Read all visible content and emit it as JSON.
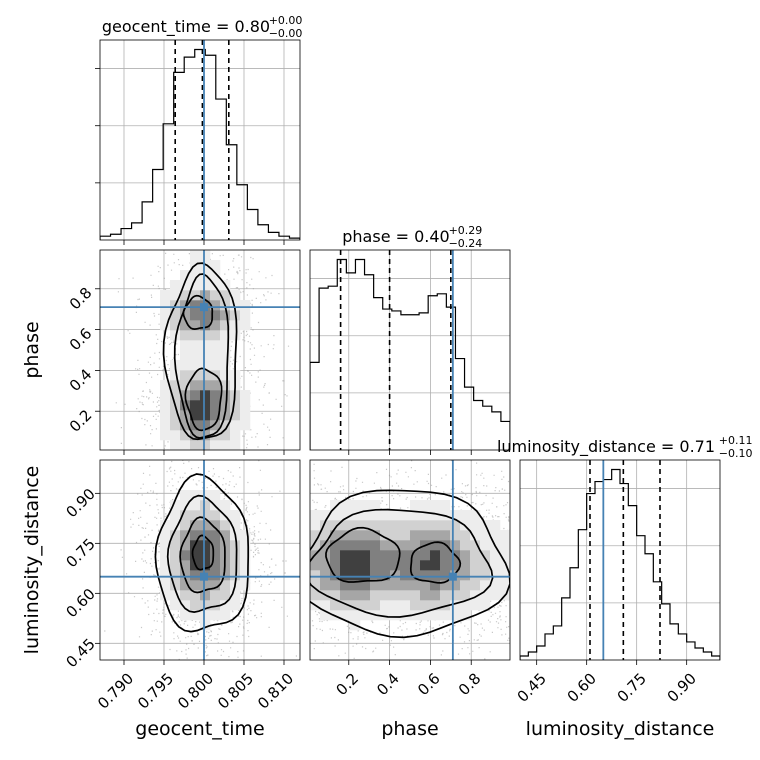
{
  "chart_data": {
    "type": "corner",
    "parameters": [
      {
        "name": "geocent_time",
        "label": "geocent_time",
        "median": "0.80",
        "plus": "+0.00",
        "minus": "−0.00",
        "truth": 0.8,
        "range": [
          0.787,
          0.812
        ],
        "ticks": [
          "0.790",
          "0.795",
          "0.800",
          "0.805",
          "0.810"
        ],
        "tick_values": [
          0.79,
          0.795,
          0.8,
          0.805,
          0.81
        ],
        "quantiles": [
          0.7964,
          0.7998,
          0.8031
        ],
        "hist": [
          0.02,
          0.03,
          0.06,
          0.09,
          0.2,
          0.37,
          0.61,
          0.88,
          0.96,
          1.0,
          0.97,
          0.74,
          0.5,
          0.29,
          0.16,
          0.08,
          0.04,
          0.02,
          0.01
        ]
      },
      {
        "name": "phase",
        "label": "phase",
        "median": "0.40",
        "plus": "+0.29",
        "minus": "−0.24",
        "truth": 0.71,
        "range": [
          0.01,
          0.99
        ],
        "ticks": [
          "0.2",
          "0.4",
          "0.6",
          "0.8"
        ],
        "tick_values": [
          0.2,
          0.4,
          0.6,
          0.8
        ],
        "quantiles": [
          0.16,
          0.4,
          0.7
        ],
        "hist": [
          0.46,
          0.85,
          0.86,
          1.0,
          0.93,
          1.0,
          0.92,
          0.8,
          0.74,
          0.73,
          0.71,
          0.71,
          0.72,
          0.81,
          0.82,
          0.75,
          0.48,
          0.33,
          0.26,
          0.23,
          0.2,
          0.15
        ]
      },
      {
        "name": "luminosity_distance",
        "label": "luminosity_distance",
        "median": "0.71",
        "plus": "+0.11",
        "minus": "−0.10",
        "truth": 0.65,
        "range": [
          0.4,
          1.0
        ],
        "ticks": [
          "0.45",
          "0.60",
          "0.75",
          "0.90"
        ],
        "tick_values": [
          0.45,
          0.6,
          0.75,
          0.9
        ],
        "quantiles": [
          0.61,
          0.71,
          0.82
        ],
        "hist": [
          0.02,
          0.04,
          0.07,
          0.13,
          0.17,
          0.31,
          0.46,
          0.65,
          0.83,
          0.89,
          0.9,
          0.95,
          0.88,
          0.77,
          0.62,
          0.53,
          0.39,
          0.28,
          0.18,
          0.13,
          0.09,
          0.06,
          0.04,
          0.02
        ]
      }
    ],
    "hist2d": {
      "phase_vs_geocent_time": {
        "x_center": 0.7999,
        "y_modes": [
          0.22,
          0.68
        ],
        "x_sigma": 0.0028,
        "y_sigma": [
          0.11,
          0.08
        ]
      },
      "luminosity_distance_vs_geocent_time": {
        "x_center": 0.7999,
        "y_center": 0.71,
        "x_sigma": 0.0028,
        "y_sigma": 0.1
      },
      "luminosity_distance_vs_phase": {
        "x_modes": [
          0.22,
          0.62
        ],
        "y_center": 0.69,
        "x_sigma": 0.14,
        "y_sigma": 0.09
      }
    },
    "truth_color": "#4682b4",
    "grid": true
  }
}
